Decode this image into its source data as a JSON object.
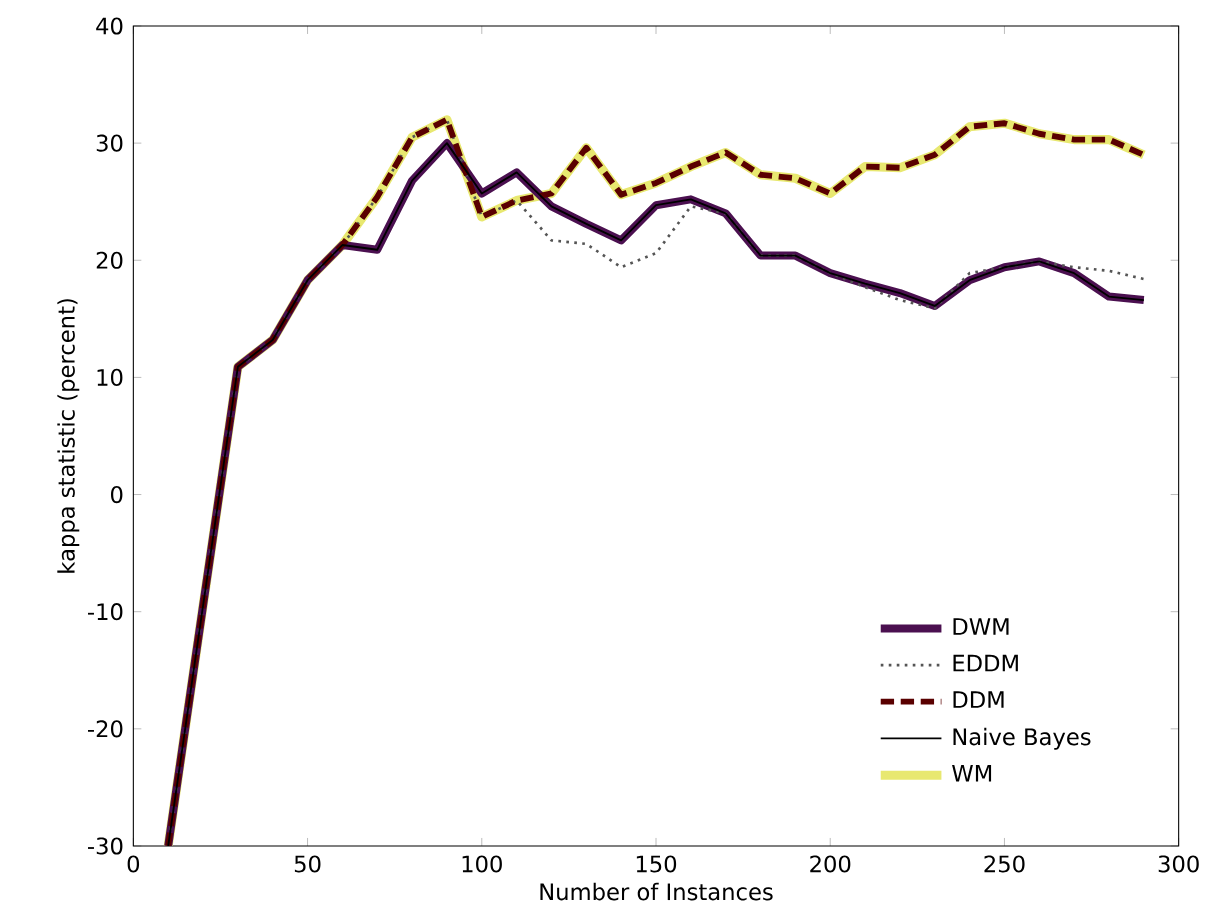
{
  "chart_data": {
    "type": "line",
    "xlabel": "Number of Instances",
    "ylabel": "kappa statistic (percent)",
    "x": [
      10,
      20,
      30,
      40,
      50,
      60,
      70,
      80,
      90,
      100,
      110,
      120,
      130,
      140,
      150,
      160,
      170,
      180,
      190,
      200,
      210,
      220,
      230,
      240,
      250,
      260,
      270,
      280,
      290
    ],
    "series": [
      {
        "name": "DWM",
        "color": "#4b1050",
        "line_style": "solid",
        "values": [
          -30,
          -9.5,
          10.9,
          13.2,
          18.3,
          21.3,
          20.9,
          26.8,
          30,
          25.7,
          27.5,
          24.6,
          23.1,
          21.7,
          24.7,
          25.2,
          24,
          20.4,
          20.4,
          18.9,
          18,
          17.2,
          16.1,
          18.3,
          19.4,
          19.9,
          18.9,
          16.9,
          16.6
        ]
      },
      {
        "name": "EDDM",
        "color": "#555555",
        "line_style": "dotted",
        "values": [
          -30,
          -9.5,
          10.9,
          13.2,
          18.3,
          21.3,
          25.4,
          30.5,
          32,
          23.7,
          25.1,
          21.7,
          21.4,
          19.4,
          20.6,
          24.6,
          24,
          20.4,
          20.4,
          18.9,
          17.7,
          16.6,
          15.9,
          18.9,
          19.4,
          19.9,
          19.4,
          19.1,
          18.4
        ]
      },
      {
        "name": "DDM",
        "color": "#5a0000",
        "line_style": "dashed",
        "values": [
          -30,
          -9.5,
          10.9,
          13.2,
          18.3,
          21.3,
          25.4,
          30.5,
          32,
          23.7,
          25.1,
          25.7,
          29.6,
          25.6,
          26.6,
          28,
          29.2,
          27.3,
          27,
          25.7,
          28,
          27.9,
          29,
          31.4,
          31.7,
          30.8,
          30.3,
          30.3,
          29
        ]
      },
      {
        "name": "Naive Bayes",
        "color": "#000000",
        "line_style": "solid",
        "values": [
          -30,
          -9.5,
          10.9,
          13.2,
          18.3,
          21.3,
          20.9,
          26.8,
          30,
          25.7,
          27.5,
          24.6,
          23.1,
          21.7,
          24.7,
          25.2,
          24,
          20.4,
          20.4,
          18.9,
          18,
          17.2,
          16.1,
          18.3,
          19.4,
          19.9,
          18.9,
          16.9,
          16.6
        ]
      },
      {
        "name": "WM",
        "color": "#e8e870",
        "line_style": "solid",
        "values": [
          -30,
          -9.5,
          10.9,
          13.2,
          18.3,
          21.3,
          25.4,
          30.5,
          32,
          23.7,
          25.1,
          25.7,
          29.6,
          25.6,
          26.6,
          28,
          29.2,
          27.3,
          27,
          25.7,
          28,
          27.9,
          29,
          31.4,
          31.7,
          30.8,
          30.3,
          30.3,
          29
        ]
      }
    ],
    "xlim": [
      0,
      300
    ],
    "ylim": [
      -30,
      40
    ],
    "xticks": [
      0,
      50,
      100,
      150,
      200,
      250,
      300
    ],
    "yticks": [
      -30,
      -20,
      -10,
      0,
      10,
      20,
      30,
      40
    ],
    "grid": false,
    "legend": "bottom right"
  }
}
